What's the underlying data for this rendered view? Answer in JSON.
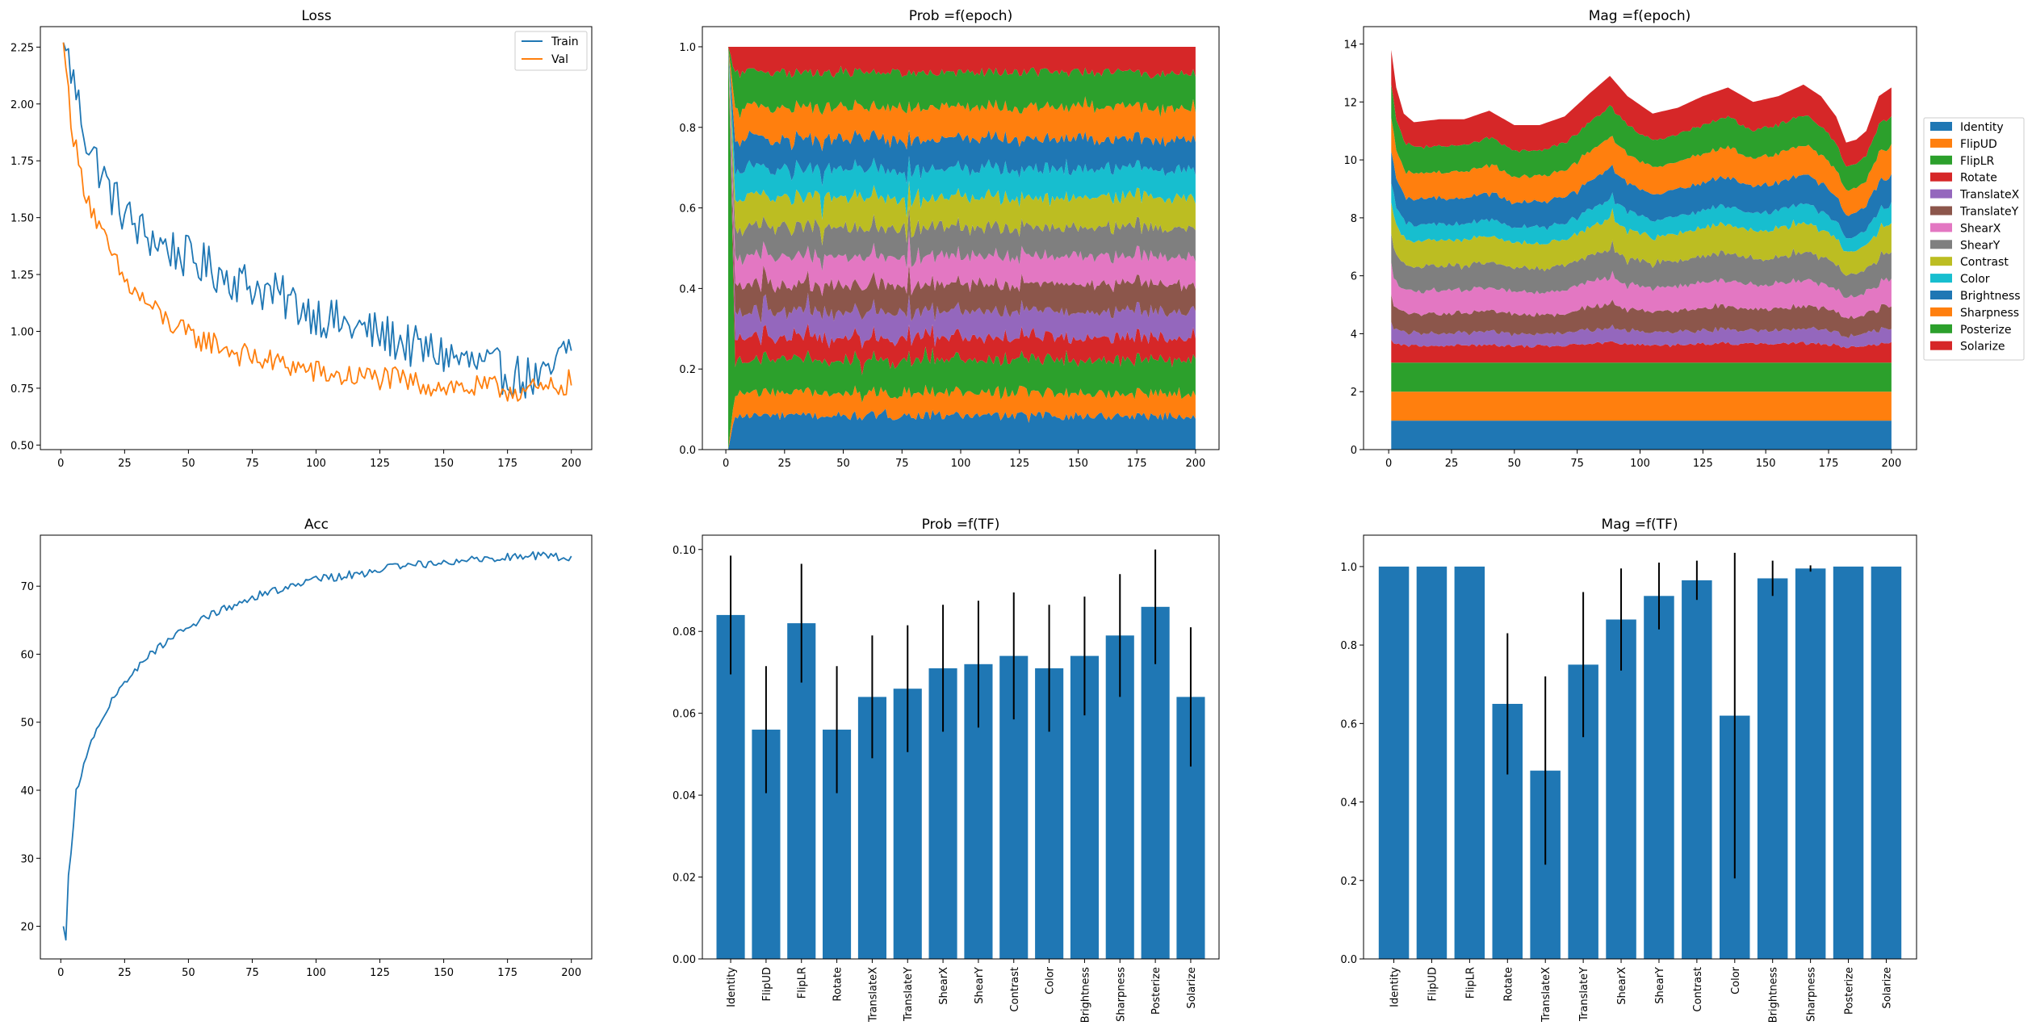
{
  "colors": {
    "Identity": "#1f77b4",
    "FlipUD": "#ff7f0e",
    "FlipLR": "#2ca02c",
    "Rotate": "#d62728",
    "TranslateX": "#9467bd",
    "TranslateY": "#8c564b",
    "ShearX": "#e377c2",
    "ShearY": "#7f7f7f",
    "Contrast": "#bcbd22",
    "Color": "#17becf",
    "Brightness": "#1f77b4",
    "Sharpness": "#ff7f0e",
    "Posterize": "#2ca02c",
    "Solarize": "#d62728",
    "train": "#1f77b4",
    "val": "#ff7f0e",
    "bar": "#1f77b4"
  },
  "chart_data": [
    {
      "id": "loss",
      "type": "line",
      "title": "Loss",
      "xlim": [
        -8,
        208
      ],
      "ylim": [
        0.48,
        2.34
      ],
      "xticks": [
        0,
        25,
        50,
        75,
        100,
        125,
        150,
        175,
        200
      ],
      "xtick_labels": [
        "0",
        "25",
        "50",
        "75",
        "100",
        "125",
        "150",
        "175",
        "200"
      ],
      "yticks": [
        0.5,
        0.75,
        1.0,
        1.25,
        1.5,
        1.75,
        2.0,
        2.25
      ],
      "ytick_labels": [
        "0.50",
        "0.75",
        "1.00",
        "1.25",
        "1.50",
        "1.75",
        "2.00",
        "2.25"
      ],
      "legend": {
        "placement": "top-right",
        "entries": [
          "Train",
          "Val"
        ]
      },
      "series": [
        {
          "name": "Train",
          "key": "train",
          "noise": 0.1,
          "anchors": [
            [
              1,
              2.27
            ],
            [
              3,
              2.2
            ],
            [
              5,
              2.1
            ],
            [
              10,
              1.85
            ],
            [
              15,
              1.72
            ],
            [
              20,
              1.6
            ],
            [
              25,
              1.52
            ],
            [
              30,
              1.45
            ],
            [
              40,
              1.38
            ],
            [
              50,
              1.32
            ],
            [
              60,
              1.27
            ],
            [
              70,
              1.22
            ],
            [
              80,
              1.18
            ],
            [
              90,
              1.13
            ],
            [
              100,
              1.08
            ],
            [
              110,
              1.03
            ],
            [
              120,
              1.0
            ],
            [
              130,
              0.97
            ],
            [
              140,
              0.92
            ],
            [
              150,
              0.9
            ],
            [
              160,
              0.86
            ],
            [
              170,
              0.83
            ],
            [
              180,
              0.8
            ],
            [
              190,
              0.78
            ],
            [
              200,
              0.95
            ]
          ]
        },
        {
          "name": "Val",
          "key": "val",
          "noise": 0.055,
          "anchors": [
            [
              1,
              2.27
            ],
            [
              3,
              2.05
            ],
            [
              5,
              1.85
            ],
            [
              8,
              1.68
            ],
            [
              12,
              1.55
            ],
            [
              15,
              1.45
            ],
            [
              20,
              1.33
            ],
            [
              25,
              1.22
            ],
            [
              30,
              1.16
            ],
            [
              40,
              1.06
            ],
            [
              50,
              0.98
            ],
            [
              60,
              0.95
            ],
            [
              70,
              0.9
            ],
            [
              80,
              0.87
            ],
            [
              90,
              0.85
            ],
            [
              100,
              0.82
            ],
            [
              110,
              0.8
            ],
            [
              120,
              0.8
            ],
            [
              130,
              0.79
            ],
            [
              140,
              0.77
            ],
            [
              150,
              0.76
            ],
            [
              160,
              0.75
            ],
            [
              170,
              0.75
            ],
            [
              180,
              0.74
            ],
            [
              190,
              0.74
            ],
            [
              200,
              0.78
            ]
          ]
        }
      ]
    },
    {
      "id": "prob_epoch",
      "type": "area",
      "title": "Prob =f(epoch)",
      "xlim": [
        -10,
        210
      ],
      "ylim": [
        0,
        1.05
      ],
      "xticks": [
        0,
        25,
        50,
        75,
        100,
        125,
        150,
        175,
        200
      ],
      "xtick_labels": [
        "0",
        "25",
        "50",
        "75",
        "100",
        "125",
        "150",
        "175",
        "200"
      ],
      "yticks": [
        0,
        0.2,
        0.4,
        0.6,
        0.8,
        1.0
      ],
      "ytick_labels": [
        "0.0",
        "0.2",
        "0.4",
        "0.6",
        "0.8",
        "1.0"
      ],
      "x_start": 1,
      "x_end": 200,
      "noise": 0.012,
      "series": [
        {
          "name": "Identity",
          "value": 0.084
        },
        {
          "name": "FlipUD",
          "value": 0.056
        },
        {
          "name": "FlipLR",
          "value": 0.082
        },
        {
          "name": "Rotate",
          "value": 0.056
        },
        {
          "name": "TranslateX",
          "value": 0.064
        },
        {
          "name": "TranslateY",
          "value": 0.066
        },
        {
          "name": "ShearX",
          "value": 0.071
        },
        {
          "name": "ShearY",
          "value": 0.072
        },
        {
          "name": "Contrast",
          "value": 0.074
        },
        {
          "name": "Color",
          "value": 0.071
        },
        {
          "name": "Brightness",
          "value": 0.074
        },
        {
          "name": "Sharpness",
          "value": 0.079
        },
        {
          "name": "Posterize",
          "value": 0.086
        },
        {
          "name": "Solarize",
          "value": 0.064
        }
      ]
    },
    {
      "id": "mag_epoch",
      "type": "area",
      "title": "Mag =f(epoch)",
      "xlim": [
        -10,
        210
      ],
      "ylim": [
        0,
        14.6
      ],
      "xticks": [
        0,
        25,
        50,
        75,
        100,
        125,
        150,
        175,
        200
      ],
      "xtick_labels": [
        "0",
        "25",
        "50",
        "75",
        "100",
        "125",
        "150",
        "175",
        "200"
      ],
      "yticks": [
        0,
        2,
        4,
        6,
        8,
        10,
        12,
        14
      ],
      "ytick_labels": [
        "0",
        "2",
        "4",
        "6",
        "8",
        "10",
        "12",
        "14"
      ],
      "x_start": 1,
      "x_end": 200,
      "legend": {
        "placement": "outside-right"
      },
      "series": [
        {
          "name": "Identity",
          "value": 1.0,
          "noise": 0
        },
        {
          "name": "FlipUD",
          "value": 1.0,
          "noise": 0
        },
        {
          "name": "FlipLR",
          "value": 1.0,
          "noise": 0
        },
        {
          "name": "Rotate",
          "value": 0.65,
          "noise": 0.06
        },
        {
          "name": "TranslateX",
          "value": 0.48,
          "noise": 0.08
        },
        {
          "name": "TranslateY",
          "value": 0.75,
          "noise": 0.08
        },
        {
          "name": "ShearX",
          "value": 0.87,
          "noise": 0.08
        },
        {
          "name": "ShearY",
          "value": 0.93,
          "noise": 0.08
        },
        {
          "name": "Contrast",
          "value": 0.97,
          "noise": 0.08
        },
        {
          "name": "Color",
          "value": 0.62,
          "noise": 0.1
        },
        {
          "name": "Brightness",
          "value": 0.97,
          "noise": 0.06
        },
        {
          "name": "Sharpness",
          "value": 1.0,
          "noise": 0.06
        },
        {
          "name": "Posterize",
          "value": 1.0,
          "noise": 0.06
        },
        {
          "name": "Solarize",
          "value": 1.0,
          "noise": 0.08
        }
      ],
      "total_anchors": [
        [
          1,
          13.8
        ],
        [
          3,
          12.5
        ],
        [
          6,
          11.6
        ],
        [
          10,
          11.3
        ],
        [
          20,
          11.4
        ],
        [
          30,
          11.4
        ],
        [
          40,
          11.7
        ],
        [
          50,
          11.2
        ],
        [
          60,
          11.2
        ],
        [
          70,
          11.5
        ],
        [
          80,
          12.3
        ],
        [
          88,
          12.9
        ],
        [
          95,
          12.2
        ],
        [
          105,
          11.6
        ],
        [
          115,
          11.8
        ],
        [
          125,
          12.2
        ],
        [
          135,
          12.5
        ],
        [
          145,
          12.0
        ],
        [
          155,
          12.2
        ],
        [
          165,
          12.6
        ],
        [
          172,
          12.2
        ],
        [
          178,
          11.5
        ],
        [
          182,
          10.6
        ],
        [
          186,
          10.7
        ],
        [
          190,
          11.0
        ],
        [
          195,
          12.2
        ],
        [
          200,
          12.5
        ]
      ]
    },
    {
      "id": "acc",
      "type": "line",
      "title": "Acc",
      "xlim": [
        -8,
        208
      ],
      "ylim": [
        15.2,
        77.5
      ],
      "xticks": [
        0,
        25,
        50,
        75,
        100,
        125,
        150,
        175,
        200
      ],
      "xtick_labels": [
        "0",
        "25",
        "50",
        "75",
        "100",
        "125",
        "150",
        "175",
        "200"
      ],
      "yticks": [
        20,
        30,
        40,
        50,
        60,
        70
      ],
      "ytick_labels": [
        "20",
        "30",
        "40",
        "50",
        "60",
        "70"
      ],
      "series": [
        {
          "name": "",
          "key": "train",
          "noise": 0.6,
          "anchors": [
            [
              1,
              20
            ],
            [
              2,
              18
            ],
            [
              3,
              27
            ],
            [
              5,
              35
            ],
            [
              6,
              40
            ],
            [
              8,
              42
            ],
            [
              10,
              45
            ],
            [
              13,
              48
            ],
            [
              16,
              50
            ],
            [
              20,
              53
            ],
            [
              25,
              56
            ],
            [
              30,
              58
            ],
            [
              35,
              60
            ],
            [
              40,
              61.5
            ],
            [
              45,
              63
            ],
            [
              50,
              64
            ],
            [
              60,
              66
            ],
            [
              70,
              67.5
            ],
            [
              80,
              69
            ],
            [
              90,
              70
            ],
            [
              100,
              71
            ],
            [
              110,
              71.5
            ],
            [
              120,
              72
            ],
            [
              130,
              72.8
            ],
            [
              140,
              73.2
            ],
            [
              150,
              73.6
            ],
            [
              160,
              74
            ],
            [
              170,
              74.2
            ],
            [
              180,
              74.4
            ],
            [
              190,
              74.5
            ],
            [
              200,
              74.2
            ]
          ]
        }
      ]
    },
    {
      "id": "prob_tf",
      "type": "bar",
      "title": "Prob =f(TF)",
      "ylim": [
        0,
        0.1035
      ],
      "yticks": [
        0,
        0.02,
        0.04,
        0.06,
        0.08,
        0.1
      ],
      "ytick_labels": [
        "0.00",
        "0.02",
        "0.04",
        "0.06",
        "0.08",
        "0.10"
      ],
      "categories": [
        "Identity",
        "FlipUD",
        "FlipLR",
        "Rotate",
        "TranslateX",
        "TranslateY",
        "ShearX",
        "ShearY",
        "Contrast",
        "Color",
        "Brightness",
        "Sharpness",
        "Posterize",
        "Solarize"
      ],
      "values": [
        0.084,
        0.056,
        0.082,
        0.056,
        0.064,
        0.066,
        0.071,
        0.072,
        0.074,
        0.071,
        0.074,
        0.079,
        0.086,
        0.064
      ],
      "errors": [
        0.0145,
        0.0155,
        0.0145,
        0.0155,
        0.015,
        0.0155,
        0.0155,
        0.0155,
        0.0155,
        0.0155,
        0.0145,
        0.015,
        0.014,
        0.017
      ]
    },
    {
      "id": "mag_tf",
      "type": "bar",
      "title": "Mag =f(TF)",
      "ylim": [
        0,
        1.08
      ],
      "yticks": [
        0,
        0.2,
        0.4,
        0.6,
        0.8,
        1.0
      ],
      "ytick_labels": [
        "0.0",
        "0.2",
        "0.4",
        "0.6",
        "0.8",
        "1.0"
      ],
      "categories": [
        "Identity",
        "FlipUD",
        "FlipLR",
        "Rotate",
        "TranslateX",
        "TranslateY",
        "ShearX",
        "ShearY",
        "Contrast",
        "Color",
        "Brightness",
        "Sharpness",
        "Posterize",
        "Solarize"
      ],
      "values": [
        1.0,
        1.0,
        1.0,
        0.65,
        0.48,
        0.75,
        0.865,
        0.925,
        0.965,
        0.62,
        0.97,
        0.995,
        1.0,
        1.0
      ],
      "errors": [
        0,
        0,
        0,
        0.18,
        0.24,
        0.185,
        0.13,
        0.085,
        0.05,
        0.415,
        0.045,
        0.008,
        0,
        0
      ]
    }
  ]
}
